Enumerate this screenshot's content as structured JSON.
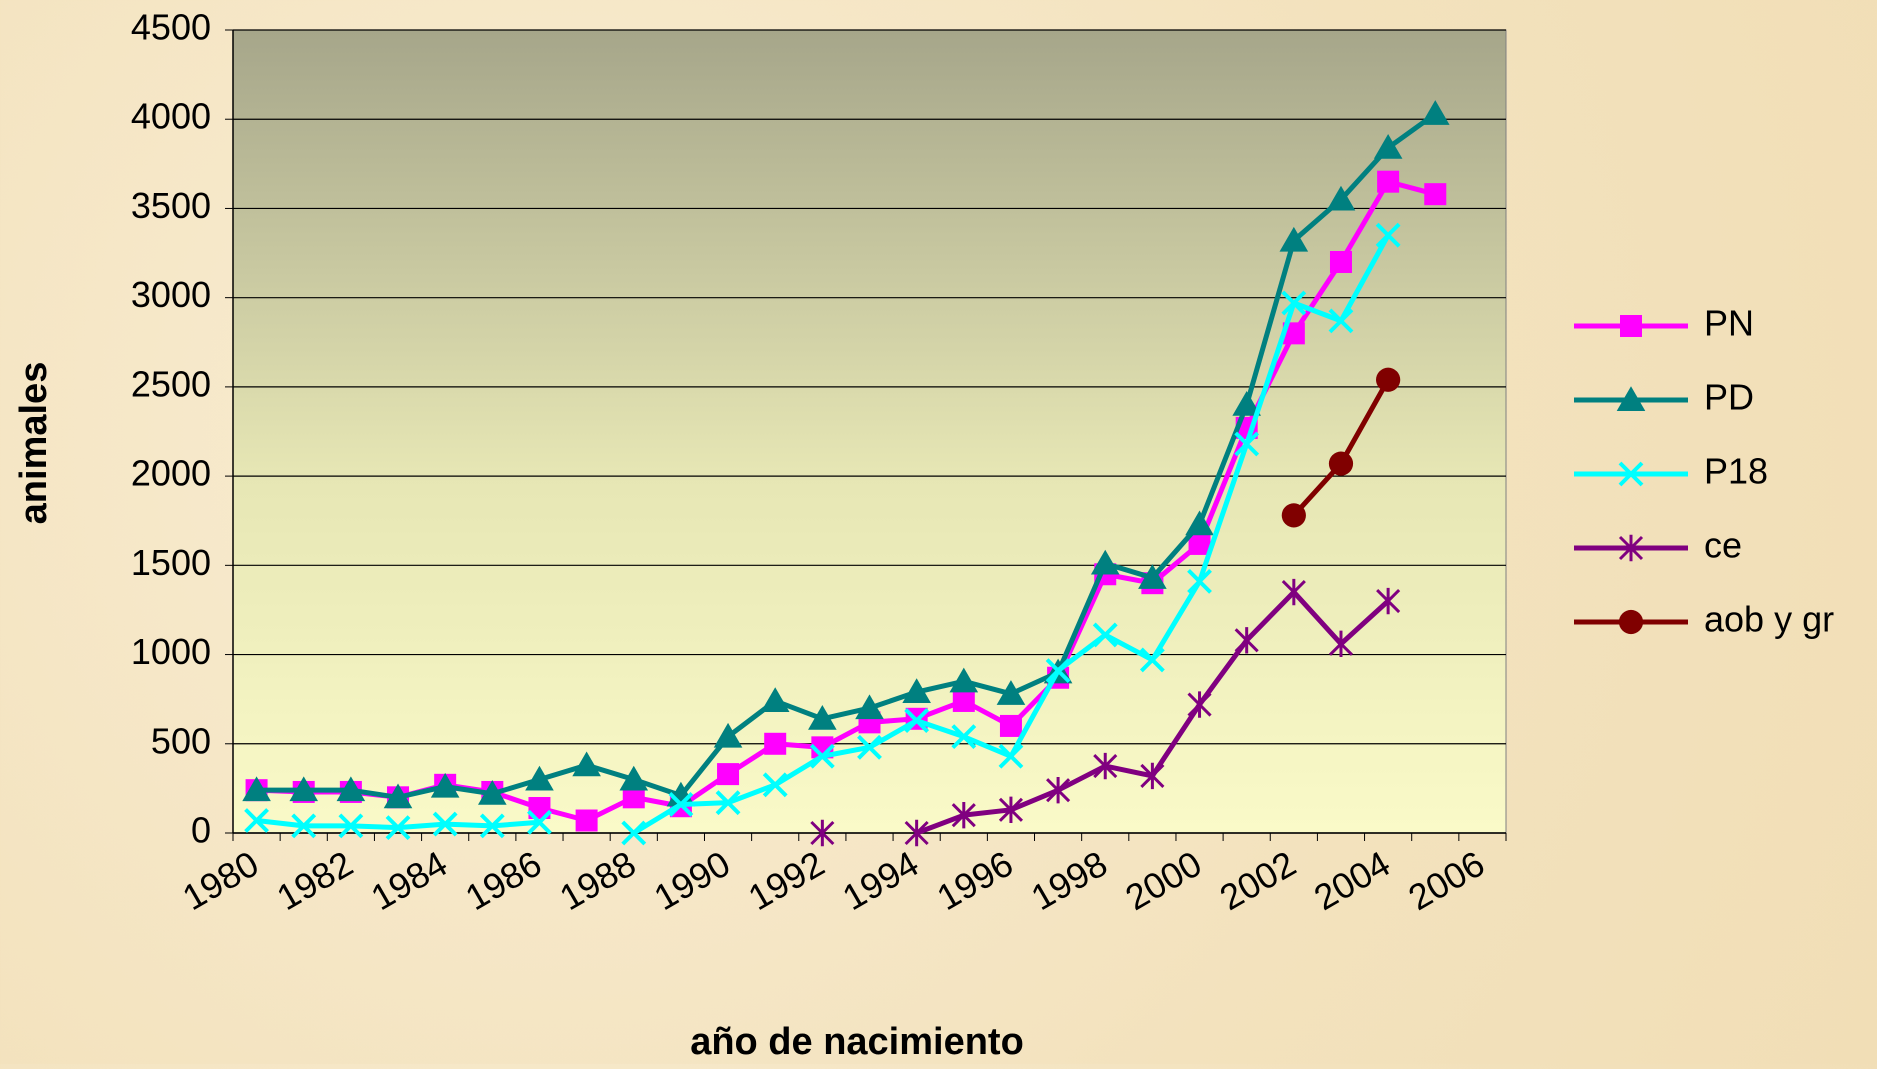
{
  "chart_data": {
    "type": "line",
    "x_label": "año de nacimiento",
    "y_label": "animales",
    "categories": [
      "1980",
      null,
      "1982",
      null,
      "1984",
      null,
      "1986",
      null,
      "1988",
      null,
      "1990",
      null,
      "1992",
      null,
      "1994",
      null,
      "1996",
      null,
      "1998",
      null,
      "2000",
      null,
      "2002",
      null,
      "2004",
      null,
      "2006"
    ],
    "ylim": [
      0,
      4500
    ],
    "yticks": [
      0,
      500,
      1000,
      1500,
      2000,
      2500,
      3000,
      3500,
      4000,
      4500
    ],
    "grid": true,
    "legend": "right",
    "series": [
      {
        "name": "PN",
        "color": "#ff00ff",
        "marker": "square",
        "values": [
          240,
          230,
          230,
          200,
          270,
          230,
          140,
          70,
          200,
          150,
          330,
          500,
          480,
          620,
          640,
          740,
          600,
          870,
          1450,
          1400,
          1620,
          2270,
          2800,
          3200,
          3650,
          3580,
          null
        ]
      },
      {
        "name": "PD",
        "color": "#008080",
        "marker": "triangle",
        "values": [
          240,
          240,
          240,
          200,
          260,
          220,
          300,
          380,
          300,
          210,
          540,
          740,
          640,
          700,
          790,
          850,
          780,
          900,
          1510,
          1430,
          1730,
          2400,
          3320,
          3550,
          3840,
          4030,
          null
        ]
      },
      {
        "name": "P18",
        "color": "#00ffff",
        "marker": "x",
        "values": [
          70,
          40,
          40,
          30,
          50,
          40,
          60,
          null,
          0,
          160,
          170,
          270,
          430,
          480,
          630,
          540,
          430,
          910,
          1110,
          970,
          1410,
          2180,
          2970,
          2870,
          3350,
          null,
          null
        ]
      },
      {
        "name": "ce",
        "color": "#800080",
        "marker": "star",
        "values": [
          null,
          null,
          null,
          null,
          null,
          null,
          null,
          null,
          null,
          null,
          null,
          null,
          0,
          null,
          0,
          100,
          130,
          240,
          375,
          320,
          720,
          1080,
          1350,
          1060,
          1300,
          null,
          null
        ]
      },
      {
        "name": "aob y gr",
        "color": "#800000",
        "marker": "circle",
        "values": [
          null,
          null,
          null,
          null,
          null,
          null,
          null,
          null,
          null,
          null,
          null,
          null,
          null,
          null,
          null,
          null,
          null,
          null,
          null,
          null,
          null,
          null,
          1780,
          2070,
          2540,
          null,
          null
        ]
      }
    ]
  }
}
